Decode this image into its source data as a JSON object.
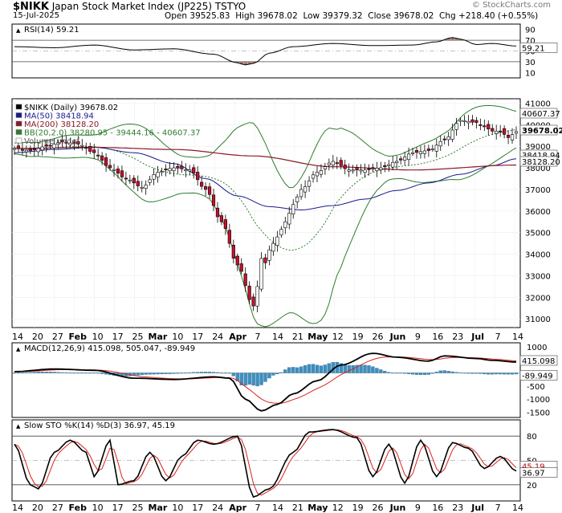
{
  "header": {
    "symbol": "$NIKK",
    "name": "Japan Stock Market Index (JP225)",
    "exchange": "TSTYO",
    "date": "15-Jul-2025",
    "watermark": "© StockCharts.com",
    "ohlc": {
      "open_label": "Open",
      "open": "39525.83",
      "high_label": "High",
      "high": "39678.02",
      "low_label": "Low",
      "low": "39379.32",
      "close_label": "Close",
      "close": "39678.02",
      "chg_label": "Chg",
      "chg": "+218.40 (+0.55%)"
    }
  },
  "colors": {
    "up": "#ffffff",
    "down": "#c8102e",
    "ma50": "#1a1a8c",
    "ma200": "#8b1a2a",
    "bb": "#2e7d2e",
    "macd_hist": "#3e8fbf",
    "stoch_d": "#d9231d",
    "line": "#000000"
  },
  "rsi_panel": {
    "label": "RSI(14) 59.21",
    "value": 59.21,
    "ticks": [
      "90",
      "70",
      "50",
      "30",
      "10"
    ],
    "badge": "59.21"
  },
  "price_panel": {
    "legend": [
      {
        "text": "$NIKK (Daily) 39678.02",
        "color": "#000000"
      },
      {
        "text": "MA(50) 38418.94",
        "color": "#1a1a8c"
      },
      {
        "text": "MA(200) 38128.20",
        "color": "#8b1a2a"
      },
      {
        "text": "BB(20,2.0) 38280.95 - 39444.16 - 40607.37",
        "color": "#2e7d2e"
      },
      {
        "text": "Volume undef",
        "color": "#555555"
      }
    ],
    "ticks": [
      "41000",
      "40000",
      "39000",
      "38000",
      "37000",
      "36000",
      "35000",
      "34000",
      "33000",
      "32000",
      "31000"
    ],
    "badges": [
      {
        "text": "40607.37",
        "value": 40607.37,
        "kind": "bb"
      },
      {
        "text": "39678.02",
        "value": 39678.02,
        "kind": "close"
      },
      {
        "text": "38418.94",
        "value": 38418.94,
        "kind": "ma50"
      },
      {
        "text": "38128.20",
        "value": 38128.2,
        "kind": "ma200"
      }
    ]
  },
  "date_axis": [
    "14",
    "20",
    "27",
    "Feb",
    "10",
    "17",
    "25",
    "Mar",
    "10",
    "17",
    "24",
    "Apr",
    "7",
    "14",
    "21",
    "May",
    "12",
    "19",
    "26",
    "Jun",
    "9",
    "16",
    "23",
    "Jul",
    "7",
    "14"
  ],
  "macd_panel": {
    "label": "MACD(12,26,9) 415.098, 505.047, -89.949",
    "ticks": [
      "1000",
      "500",
      "0",
      "-500",
      "-1000",
      "-1500"
    ],
    "badges": [
      {
        "text": "415.098",
        "value": 415.098
      },
      {
        "text": "-89.949",
        "value": -89.949
      }
    ]
  },
  "sto_panel": {
    "label": "Slow STO %K(14) %D(3) 36.97, 45.19",
    "ticks": [
      "80",
      "50",
      "20"
    ],
    "badges": [
      {
        "text": "45.19",
        "value": 45.19
      },
      {
        "text": "36.97",
        "value": 36.97
      }
    ]
  },
  "chart_data": {
    "type": "line",
    "price_anchors": {
      "x": [
        0,
        4,
        8,
        12,
        16,
        20,
        24,
        28,
        32,
        36,
        40,
        44,
        48,
        52,
        56,
        60,
        61,
        62,
        63,
        64,
        66,
        68,
        70,
        72,
        76,
        80,
        84,
        88,
        92,
        96,
        100,
        104,
        108,
        112,
        116,
        118,
        120,
        122,
        124,
        126
      ],
      "y": [
        38900,
        38800,
        39000,
        39200,
        39100,
        38700,
        38000,
        37500,
        37100,
        37800,
        38000,
        37900,
        37000,
        35500,
        33500,
        31600,
        32500,
        33800,
        33600,
        34200,
        34800,
        35500,
        36300,
        37000,
        37800,
        38300,
        37900,
        37900,
        38000,
        38300,
        38700,
        38800,
        39300,
        40200,
        40100,
        39900,
        39700,
        39700,
        39400,
        39678
      ]
    },
    "ma50_anchors": {
      "x": [
        0,
        10,
        20,
        30,
        40,
        48,
        56,
        64,
        72,
        80,
        88,
        96,
        104,
        112,
        120,
        126
      ],
      "y": [
        38700,
        38850,
        38950,
        38700,
        38200,
        37500,
        36700,
        36200,
        36050,
        36250,
        36550,
        36950,
        37300,
        37700,
        38100,
        38419
      ]
    },
    "ma200_anchors": {
      "x": [
        0,
        20,
        40,
        60,
        80,
        100,
        126
      ],
      "y": [
        38900,
        38950,
        38850,
        38550,
        38050,
        37900,
        38128
      ]
    },
    "rsi_anchors": {
      "x": [
        0,
        10,
        20,
        30,
        40,
        50,
        56,
        58,
        60,
        64,
        70,
        80,
        90,
        100,
        106,
        110,
        112,
        116,
        120,
        126
      ],
      "y": [
        58,
        56,
        61,
        52,
        54,
        44,
        28,
        24,
        27,
        46,
        58,
        64,
        60,
        61,
        67,
        75,
        72,
        62,
        64,
        59.21
      ]
    },
    "macd_anchors": {
      "x": [
        0,
        10,
        20,
        30,
        40,
        50,
        54,
        58,
        62,
        66,
        70,
        76,
        82,
        90,
        96,
        104,
        108,
        116,
        120,
        126
      ],
      "y": [
        50,
        150,
        100,
        -200,
        -250,
        -150,
        -200,
        -1000,
        -1450,
        -1200,
        -800,
        -300,
        300,
        750,
        600,
        450,
        650,
        550,
        480,
        415
      ]
    },
    "sto_anchors": {
      "x": [
        0,
        4,
        6,
        10,
        14,
        18,
        20,
        24,
        26,
        30,
        34,
        38,
        42,
        46,
        50,
        56,
        60,
        64,
        70,
        74,
        80,
        86,
        90,
        94,
        98,
        102,
        106,
        110,
        114,
        118,
        122,
        126
      ],
      "y": [
        70,
        20,
        15,
        60,
        75,
        60,
        30,
        75,
        20,
        25,
        60,
        25,
        55,
        75,
        70,
        80,
        5,
        15,
        60,
        85,
        88,
        78,
        30,
        70,
        22,
        75,
        30,
        72,
        65,
        40,
        55,
        36.97
      ]
    },
    "price_ylim": [
      30600,
      41200
    ],
    "rsi_ylim": [
      0,
      100
    ],
    "macd_ylim": [
      -1700,
      1150
    ],
    "sto_ylim": [
      0,
      100
    ],
    "n_days": 127
  }
}
